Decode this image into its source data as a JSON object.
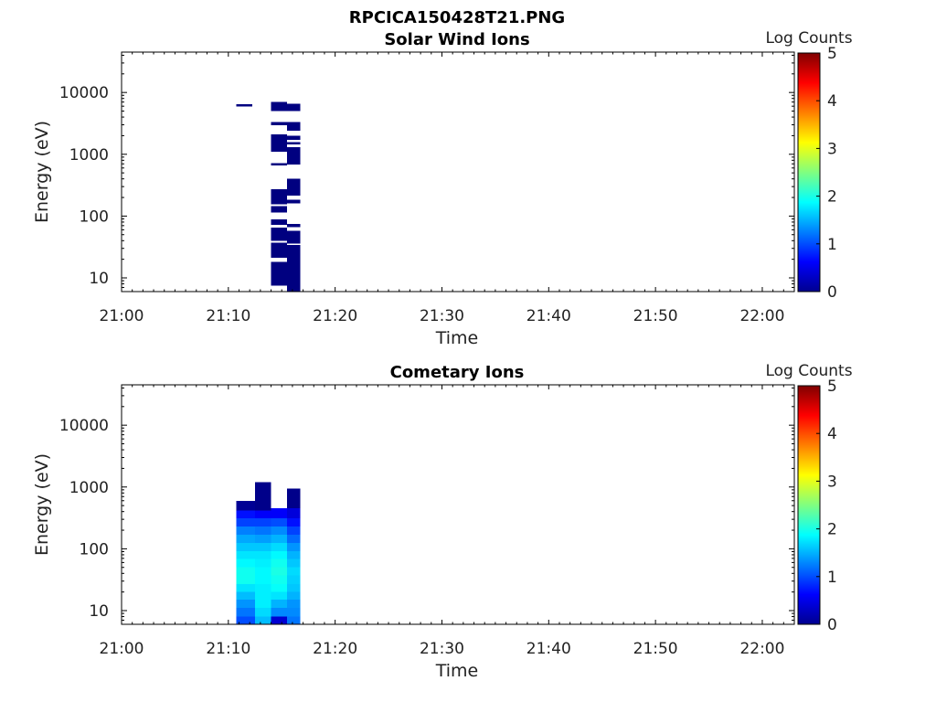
{
  "figure_title": "RPCICA150428T21.PNG",
  "chart_data": [
    {
      "type": "heatmap",
      "title": "Solar Wind Ions",
      "xlabel": "Time",
      "ylabel": "Energy (eV)",
      "y_scale": "log",
      "xlim": [
        "21:00",
        "22:03"
      ],
      "ylim": [
        6,
        45000
      ],
      "x_ticks": [
        "21:00",
        "21:10",
        "21:20",
        "21:30",
        "21:40",
        "21:50",
        "22:00"
      ],
      "y_ticks": [
        "10",
        "100",
        "1000",
        "10000"
      ],
      "colorbar": {
        "label": "Log Counts",
        "range": [
          0,
          5
        ],
        "ticks": [
          "0",
          "1",
          "2",
          "3",
          "4",
          "5"
        ],
        "colormap": "jet"
      },
      "cells": [
        {
          "t0": "21:10:45",
          "t1": "21:12:15",
          "e0": 5900,
          "e1": 6500,
          "v": 0
        },
        {
          "t0": "21:14:00",
          "t1": "21:15:30",
          "e0": 5000,
          "e1": 7000,
          "v": 0
        },
        {
          "t0": "21:14:00",
          "t1": "21:15:30",
          "e0": 2950,
          "e1": 3300,
          "v": 0
        },
        {
          "t0": "21:14:00",
          "t1": "21:15:30",
          "e0": 1100,
          "e1": 2100,
          "v": 0
        },
        {
          "t0": "21:14:00",
          "t1": "21:15:30",
          "e0": 660,
          "e1": 720,
          "v": 0
        },
        {
          "t0": "21:14:00",
          "t1": "21:15:30",
          "e0": 155,
          "e1": 270,
          "v": 0
        },
        {
          "t0": "21:14:00",
          "t1": "21:15:30",
          "e0": 115,
          "e1": 145,
          "v": 0
        },
        {
          "t0": "21:14:00",
          "t1": "21:15:30",
          "e0": 72,
          "e1": 88,
          "v": 0
        },
        {
          "t0": "21:14:00",
          "t1": "21:15:30",
          "e0": 40,
          "e1": 65,
          "v": 0
        },
        {
          "t0": "21:14:00",
          "t1": "21:15:30",
          "e0": 21,
          "e1": 37,
          "v": 0
        },
        {
          "t0": "21:14:00",
          "t1": "21:15:30",
          "e0": 7.5,
          "e1": 18,
          "v": 0
        },
        {
          "t0": "21:15:30",
          "t1": "21:16:45",
          "e0": 5000,
          "e1": 6600,
          "v": 0
        },
        {
          "t0": "21:15:30",
          "t1": "21:16:45",
          "e0": 2400,
          "e1": 3300,
          "v": 0
        },
        {
          "t0": "21:15:30",
          "t1": "21:16:45",
          "e0": 1700,
          "e1": 2000,
          "v": 0
        },
        {
          "t0": "21:15:30",
          "t1": "21:16:45",
          "e0": 1450,
          "e1": 1560,
          "v": 0
        },
        {
          "t0": "21:15:30",
          "t1": "21:16:45",
          "e0": 680,
          "e1": 1300,
          "v": 0
        },
        {
          "t0": "21:15:30",
          "t1": "21:16:45",
          "e0": 215,
          "e1": 400,
          "v": 0
        },
        {
          "t0": "21:15:30",
          "t1": "21:16:45",
          "e0": 160,
          "e1": 185,
          "v": 0
        },
        {
          "t0": "21:15:30",
          "t1": "21:16:45",
          "e0": 66,
          "e1": 74,
          "v": 0
        },
        {
          "t0": "21:15:30",
          "t1": "21:16:45",
          "e0": 36,
          "e1": 58,
          "v": 0
        },
        {
          "t0": "21:15:30",
          "t1": "21:16:45",
          "e0": 6,
          "e1": 34,
          "v": 0
        }
      ]
    },
    {
      "type": "heatmap",
      "title": "Cometary Ions",
      "xlabel": "Time",
      "ylabel": "Energy (eV)",
      "y_scale": "log",
      "xlim": [
        "21:00",
        "22:03"
      ],
      "ylim": [
        6,
        45000
      ],
      "x_ticks": [
        "21:00",
        "21:10",
        "21:20",
        "21:30",
        "21:40",
        "21:50",
        "22:00"
      ],
      "y_ticks": [
        "10",
        "100",
        "1000",
        "10000"
      ],
      "colorbar": {
        "label": "Log Counts",
        "range": [
          0,
          5
        ],
        "ticks": [
          "0",
          "1",
          "2",
          "3",
          "4",
          "5"
        ],
        "colormap": "jet"
      },
      "columns": [
        {
          "t0": "21:10:45",
          "t1": "21:12:30",
          "bins": [
            [
              6,
              8,
              1.0
            ],
            [
              8,
              11,
              1.2
            ],
            [
              11,
              15,
              1.35
            ],
            [
              15,
              20,
              1.55
            ],
            [
              20,
              27,
              1.75
            ],
            [
              27,
              37,
              1.95
            ],
            [
              37,
              50,
              1.95
            ],
            [
              50,
              68,
              1.85
            ],
            [
              68,
              92,
              1.75
            ],
            [
              92,
              125,
              1.6
            ],
            [
              125,
              170,
              1.45
            ],
            [
              170,
              230,
              1.25
            ],
            [
              230,
              310,
              0.95
            ],
            [
              310,
              420,
              0.7
            ],
            [
              420,
              600,
              0.1
            ]
          ]
        },
        {
          "t0": "21:12:30",
          "t1": "21:14:00",
          "bins": [
            [
              6,
              8,
              1.55
            ],
            [
              8,
              11,
              1.7
            ],
            [
              11,
              15,
              1.8
            ],
            [
              15,
              20,
              1.8
            ],
            [
              20,
              27,
              1.8
            ],
            [
              27,
              37,
              1.85
            ],
            [
              37,
              50,
              1.85
            ],
            [
              50,
              68,
              1.8
            ],
            [
              68,
              92,
              1.75
            ],
            [
              92,
              125,
              1.6
            ],
            [
              125,
              170,
              1.4
            ],
            [
              170,
              230,
              1.2
            ],
            [
              230,
              310,
              0.95
            ],
            [
              310,
              420,
              0.6
            ],
            [
              420,
              1200,
              0.05
            ]
          ]
        },
        {
          "t0": "21:14:00",
          "t1": "21:15:30",
          "bins": [
            [
              6,
              8,
              0.4
            ],
            [
              8,
              11,
              1.3
            ],
            [
              11,
              15,
              1.5
            ],
            [
              15,
              20,
              1.75
            ],
            [
              20,
              27,
              1.9
            ],
            [
              27,
              37,
              1.95
            ],
            [
              37,
              50,
              2.0
            ],
            [
              50,
              68,
              1.95
            ],
            [
              68,
              92,
              1.85
            ],
            [
              92,
              125,
              1.7
            ],
            [
              125,
              170,
              1.5
            ],
            [
              170,
              230,
              1.3
            ],
            [
              230,
              310,
              1.0
            ],
            [
              310,
              450,
              0.6
            ]
          ]
        },
        {
          "t0": "21:15:30",
          "t1": "21:16:45",
          "bins": [
            [
              6,
              8,
              1.2
            ],
            [
              8,
              11,
              1.3
            ],
            [
              11,
              15,
              1.35
            ],
            [
              15,
              20,
              1.5
            ],
            [
              20,
              27,
              1.6
            ],
            [
              27,
              37,
              1.65
            ],
            [
              37,
              50,
              1.7
            ],
            [
              50,
              68,
              1.6
            ],
            [
              68,
              92,
              1.5
            ],
            [
              92,
              125,
              1.35
            ],
            [
              125,
              170,
              1.15
            ],
            [
              170,
              230,
              0.95
            ],
            [
              230,
              310,
              0.7
            ],
            [
              310,
              450,
              0.45
            ],
            [
              450,
              950,
              0.05
            ]
          ]
        }
      ]
    }
  ]
}
